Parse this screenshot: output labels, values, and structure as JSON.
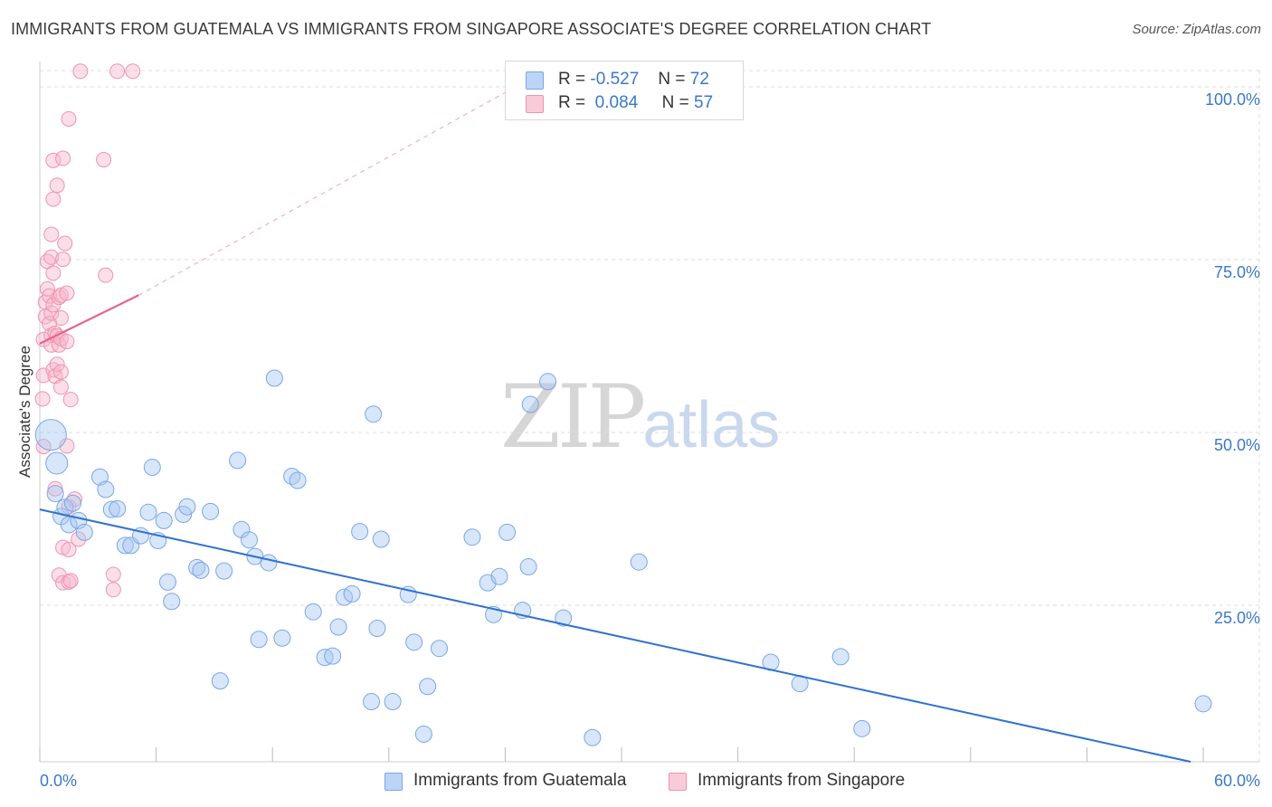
{
  "title": "IMMIGRANTS FROM GUATEMALA VS IMMIGRANTS FROM SINGAPORE ASSOCIATE'S DEGREE CORRELATION CHART",
  "source": "Source: ZipAtlas.com",
  "watermark": {
    "zip": "ZIP",
    "atlas": "atlas"
  },
  "colors": {
    "blue_fill": "#a9c8f2",
    "blue_stroke": "#7aa6e6",
    "blue_line": "#2f72d0",
    "pink_fill": "#f6b8cc",
    "pink_stroke": "#ee93b0",
    "pink_line": "#e8628f",
    "axis_text": "#3a78c9",
    "grid": "#dddddd"
  },
  "legend": {
    "rows": [
      {
        "r_label": "R =",
        "r_value": "-0.527",
        "n_label": "N =",
        "n_value": "72",
        "series": "blue"
      },
      {
        "r_label": "R =",
        "r_value": "0.084",
        "n_label": "N =",
        "n_value": "57",
        "series": "pink"
      }
    ]
  },
  "bottom_legend": [
    {
      "label": "Immigrants from Guatemala",
      "series": "blue"
    },
    {
      "label": "Immigrants from Singapore",
      "series": "pink"
    }
  ],
  "chart_data": {
    "type": "scatter",
    "title": "IMMIGRANTS FROM GUATEMALA VS IMMIGRANTS FROM SINGAPORE ASSOCIATE'S DEGREE CORRELATION CHART",
    "xlabel": "",
    "ylabel": "Associate's Degree",
    "xlim": [
      0,
      60
    ],
    "ylim": [
      0,
      100
    ],
    "x_ticks": [
      "0.0%",
      "60.0%"
    ],
    "y_ticks": [
      "25.0%",
      "50.0%",
      "75.0%",
      "100.0%"
    ],
    "y_tick_values": [
      25,
      50,
      75,
      100
    ],
    "grid": true,
    "legend_position": "top-center",
    "series": [
      {
        "name": "Immigrants from Guatemala",
        "color": "blue",
        "R": -0.527,
        "N": 72,
        "trend": {
          "x0": 0,
          "y0": 36.5,
          "x1": 60,
          "y1": 0
        },
        "points": [
          [
            0.2,
            47.3,
            "L"
          ],
          [
            0.5,
            43.2,
            "M"
          ],
          [
            0.8,
            38.8
          ],
          [
            1.1,
            35.5
          ],
          [
            1.3,
            36.8
          ],
          [
            1.5,
            34.3
          ],
          [
            1.7,
            37.4
          ],
          [
            2.0,
            34.9
          ],
          [
            2.3,
            33.2
          ],
          [
            3.1,
            41.2
          ],
          [
            3.4,
            39.4
          ],
          [
            3.7,
            36.5
          ],
          [
            4.0,
            36.6
          ],
          [
            4.4,
            31.3
          ],
          [
            4.7,
            31.3
          ],
          [
            5.2,
            32.7
          ],
          [
            5.6,
            36.1
          ],
          [
            5.8,
            42.6
          ],
          [
            6.1,
            32.0
          ],
          [
            6.4,
            34.9
          ],
          [
            6.6,
            26.0
          ],
          [
            6.8,
            23.2
          ],
          [
            7.4,
            35.8
          ],
          [
            7.6,
            36.9
          ],
          [
            8.1,
            28.1
          ],
          [
            8.3,
            27.7
          ],
          [
            8.8,
            36.2
          ],
          [
            9.3,
            11.7
          ],
          [
            9.5,
            27.6
          ],
          [
            10.2,
            43.6
          ],
          [
            10.4,
            33.6
          ],
          [
            10.8,
            32.1
          ],
          [
            11.1,
            29.7
          ],
          [
            11.3,
            17.7
          ],
          [
            11.8,
            28.8
          ],
          [
            12.1,
            55.5
          ],
          [
            12.5,
            17.9
          ],
          [
            13.0,
            41.3
          ],
          [
            13.3,
            40.7
          ],
          [
            14.1,
            21.7
          ],
          [
            14.7,
            15.1
          ],
          [
            15.1,
            15.3
          ],
          [
            15.4,
            19.5
          ],
          [
            15.7,
            23.8
          ],
          [
            16.1,
            24.3
          ],
          [
            16.5,
            33.3
          ],
          [
            17.1,
            8.7
          ],
          [
            17.2,
            50.3
          ],
          [
            17.4,
            19.3
          ],
          [
            17.6,
            32.2
          ],
          [
            18.2,
            8.7
          ],
          [
            19.0,
            24.2
          ],
          [
            19.3,
            17.3
          ],
          [
            19.8,
            4.0
          ],
          [
            20.0,
            10.9
          ],
          [
            20.6,
            16.4
          ],
          [
            22.3,
            32.5
          ],
          [
            23.1,
            25.9
          ],
          [
            23.4,
            21.3
          ],
          [
            23.7,
            26.8
          ],
          [
            24.1,
            33.2
          ],
          [
            24.9,
            21.9
          ],
          [
            25.2,
            28.2
          ],
          [
            25.3,
            51.7
          ],
          [
            26.2,
            55.0
          ],
          [
            27.0,
            20.8
          ],
          [
            28.5,
            3.5
          ],
          [
            30.9,
            28.9
          ],
          [
            37.7,
            14.4
          ],
          [
            39.2,
            11.3
          ],
          [
            41.3,
            15.2
          ],
          [
            42.4,
            4.8
          ],
          [
            60.0,
            8.4
          ]
        ]
      },
      {
        "name": "Immigrants from Singapore",
        "color": "pink",
        "R": 0.084,
        "N": 57,
        "trend": {
          "x0": 0,
          "y0": 60.5,
          "x1": 5.1,
          "y1": 67.5,
          "dashed_to": {
            "x": 24.5,
            "y": 97.6
          }
        },
        "points": [
          [
            0.05,
            52.5
          ],
          [
            0.1,
            55.9
          ],
          [
            0.1,
            61.1
          ],
          [
            0.1,
            45.6
          ],
          [
            0.2,
            64.4
          ],
          [
            0.2,
            66.5
          ],
          [
            0.3,
            68.4
          ],
          [
            0.3,
            72.4
          ],
          [
            0.4,
            63.4
          ],
          [
            0.4,
            67.4
          ],
          [
            0.5,
            61.7
          ],
          [
            0.5,
            60.3
          ],
          [
            0.5,
            64.9
          ],
          [
            0.5,
            76.3
          ],
          [
            0.5,
            73.0
          ],
          [
            0.6,
            70.7
          ],
          [
            0.6,
            87.0
          ],
          [
            0.6,
            81.4
          ],
          [
            0.6,
            66.1
          ],
          [
            0.6,
            56.7
          ],
          [
            0.7,
            62.0
          ],
          [
            0.7,
            55.8
          ],
          [
            0.7,
            39.5
          ],
          [
            0.8,
            83.4
          ],
          [
            0.8,
            61.6
          ],
          [
            0.8,
            57.5
          ],
          [
            0.9,
            67.2
          ],
          [
            0.9,
            60.3
          ],
          [
            0.9,
            27.0
          ],
          [
            1.0,
            54.2
          ],
          [
            1.0,
            67.5
          ],
          [
            1.0,
            61.2
          ],
          [
            1.0,
            64.2
          ],
          [
            1.0,
            56.4
          ],
          [
            1.1,
            87.3
          ],
          [
            1.1,
            72.7
          ],
          [
            1.1,
            31.0
          ],
          [
            1.1,
            25.9
          ],
          [
            1.2,
            75.0
          ],
          [
            1.3,
            67.8
          ],
          [
            1.3,
            60.8
          ],
          [
            1.3,
            45.7
          ],
          [
            1.4,
            30.7
          ],
          [
            1.4,
            26.0
          ],
          [
            1.4,
            36.9
          ],
          [
            1.4,
            93.0
          ],
          [
            1.5,
            26.2
          ],
          [
            1.5,
            52.4
          ],
          [
            1.7,
            38.0
          ],
          [
            1.9,
            32.2
          ],
          [
            2.0,
            99.9
          ],
          [
            3.2,
            87.1
          ],
          [
            3.3,
            70.4
          ],
          [
            3.7,
            27.1
          ],
          [
            3.7,
            24.9
          ],
          [
            3.9,
            99.9
          ],
          [
            4.7,
            99.9
          ]
        ]
      }
    ]
  }
}
